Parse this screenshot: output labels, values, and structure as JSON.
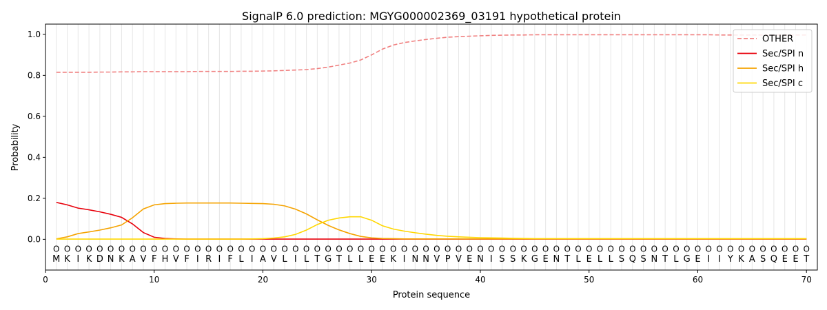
{
  "chart_data": {
    "type": "line",
    "title": "SignalP 6.0 prediction: MGYG000002369_03191 hypothetical protein",
    "xlabel": "Protein sequence",
    "ylabel": "Probability",
    "xlim": [
      0,
      71
    ],
    "ylim": [
      -0.15,
      1.05
    ],
    "xticks": [
      0,
      10,
      20,
      30,
      40,
      50,
      60,
      70
    ],
    "yticks": [
      0.0,
      0.2,
      0.4,
      0.6,
      0.8,
      1.0
    ],
    "x_tick_labels": [
      "0",
      "10",
      "20",
      "30",
      "40",
      "50",
      "60",
      "70"
    ],
    "y_tick_labels": [
      "0.0",
      "0.2",
      "0.4",
      "0.6",
      "0.8",
      "1.0"
    ],
    "legend_position": "top-right",
    "grid": "vertical lines at each residue",
    "sequence": [
      "M",
      "K",
      "I",
      "K",
      "D",
      "N",
      "K",
      "A",
      "V",
      "F",
      "H",
      "V",
      "F",
      "I",
      "R",
      "I",
      "F",
      "L",
      "I",
      "A",
      "V",
      "L",
      "I",
      "L",
      "T",
      "G",
      "T",
      "L",
      "L",
      "E",
      "E",
      "K",
      "I",
      "N",
      "N",
      "V",
      "P",
      "V",
      "E",
      "N",
      "I",
      "S",
      "S",
      "K",
      "G",
      "E",
      "N",
      "T",
      "L",
      "E",
      "L",
      "L",
      "S",
      "Q",
      "S",
      "N",
      "T",
      "L",
      "G",
      "E",
      "I",
      "I",
      "Y",
      "K",
      "A",
      "S",
      "Q",
      "E",
      "E",
      "T"
    ],
    "marker_label": "O",
    "series": [
      {
        "name": "OTHER",
        "color": "#f08080",
        "style": "dashed",
        "values": [
          0.815,
          0.815,
          0.815,
          0.815,
          0.816,
          0.816,
          0.817,
          0.817,
          0.818,
          0.818,
          0.818,
          0.818,
          0.818,
          0.819,
          0.819,
          0.819,
          0.819,
          0.82,
          0.82,
          0.821,
          0.822,
          0.824,
          0.826,
          0.828,
          0.833,
          0.84,
          0.85,
          0.86,
          0.875,
          0.9,
          0.928,
          0.948,
          0.96,
          0.968,
          0.975,
          0.981,
          0.986,
          0.989,
          0.991,
          0.993,
          0.995,
          0.996,
          0.997,
          0.997,
          0.998,
          0.998,
          0.998,
          0.998,
          0.998,
          0.998,
          0.998,
          0.998,
          0.998,
          0.998,
          0.998,
          0.998,
          0.998,
          0.998,
          0.998,
          0.998,
          0.998,
          0.997,
          0.997,
          0.997,
          0.997,
          0.997,
          0.997,
          0.997,
          0.997,
          0.997
        ]
      },
      {
        "name": "Sec/SPI n",
        "color": "#e8000b",
        "style": "solid",
        "values": [
          0.18,
          0.168,
          0.152,
          0.144,
          0.134,
          0.122,
          0.107,
          0.075,
          0.033,
          0.01,
          0.004,
          0.002,
          0.001,
          0.001,
          0.001,
          0.001,
          0.001,
          0.001,
          0.001,
          0.001,
          0.001,
          0.001,
          0.001,
          0.001,
          0.001,
          0.001,
          0.001,
          0.001,
          0.001,
          0.001,
          0.001,
          0.001,
          0.001,
          0.001,
          0.001,
          0.001,
          0.001,
          0.001,
          0.001,
          0.001,
          0.001,
          0.001,
          0.001,
          0.001,
          0.001,
          0.001,
          0.001,
          0.001,
          0.001,
          0.001,
          0.001,
          0.001,
          0.001,
          0.001,
          0.001,
          0.001,
          0.001,
          0.001,
          0.001,
          0.001,
          0.001,
          0.001,
          0.001,
          0.001,
          0.001,
          0.001,
          0.001,
          0.001,
          0.001,
          0.001
        ]
      },
      {
        "name": "Sec/SPI h",
        "color": "#f5a300",
        "style": "solid",
        "values": [
          0.002,
          0.012,
          0.028,
          0.036,
          0.045,
          0.056,
          0.07,
          0.105,
          0.148,
          0.168,
          0.174,
          0.176,
          0.177,
          0.177,
          0.177,
          0.177,
          0.177,
          0.176,
          0.175,
          0.174,
          0.171,
          0.163,
          0.147,
          0.124,
          0.095,
          0.068,
          0.046,
          0.028,
          0.014,
          0.007,
          0.004,
          0.003,
          0.002,
          0.002,
          0.002,
          0.002,
          0.002,
          0.002,
          0.002,
          0.002,
          0.002,
          0.002,
          0.002,
          0.002,
          0.002,
          0.002,
          0.002,
          0.002,
          0.002,
          0.002,
          0.002,
          0.002,
          0.002,
          0.002,
          0.002,
          0.002,
          0.002,
          0.002,
          0.002,
          0.002,
          0.002,
          0.002,
          0.002,
          0.002,
          0.002,
          0.002,
          0.002,
          0.002,
          0.002,
          0.002
        ]
      },
      {
        "name": "Sec/SPI c",
        "color": "#ffd700",
        "style": "solid",
        "values": [
          0.001,
          0.001,
          0.001,
          0.001,
          0.001,
          0.001,
          0.001,
          0.001,
          0.001,
          0.001,
          0.001,
          0.001,
          0.001,
          0.001,
          0.001,
          0.001,
          0.001,
          0.001,
          0.002,
          0.003,
          0.006,
          0.012,
          0.024,
          0.045,
          0.072,
          0.093,
          0.104,
          0.11,
          0.11,
          0.093,
          0.066,
          0.05,
          0.04,
          0.032,
          0.025,
          0.019,
          0.015,
          0.012,
          0.01,
          0.008,
          0.007,
          0.006,
          0.005,
          0.004,
          0.003,
          0.003,
          0.003,
          0.003,
          0.003,
          0.003,
          0.003,
          0.003,
          0.003,
          0.003,
          0.003,
          0.003,
          0.003,
          0.003,
          0.003,
          0.003,
          0.003,
          0.003,
          0.003,
          0.003,
          0.003,
          0.003,
          0.003,
          0.003,
          0.003,
          0.003
        ]
      }
    ]
  }
}
